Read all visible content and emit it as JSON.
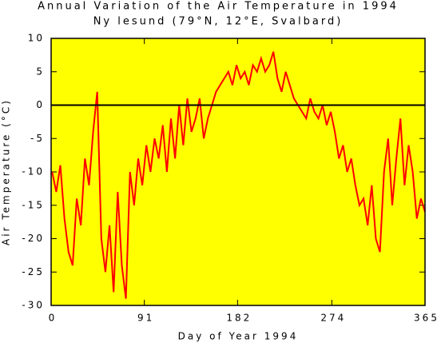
{
  "chart_data": {
    "type": "line",
    "title": "Annual Variation of the Air Temperature in 1994",
    "subtitle": "Ny lesund (79°N, 12°E, Svalbard)",
    "x_label": "Day of Year 1994",
    "y_label": "Air Temperature (°C)",
    "x": [
      1,
      5,
      9,
      13,
      17,
      21,
      25,
      29,
      33,
      37,
      41,
      45,
      49,
      53,
      57,
      61,
      65,
      69,
      73,
      77,
      81,
      85,
      89,
      93,
      97,
      101,
      105,
      109,
      113,
      117,
      121,
      125,
      129,
      133,
      137,
      141,
      145,
      149,
      153,
      157,
      161,
      165,
      169,
      173,
      177,
      181,
      185,
      189,
      193,
      197,
      201,
      205,
      209,
      213,
      217,
      221,
      225,
      229,
      233,
      237,
      241,
      245,
      249,
      253,
      257,
      261,
      265,
      269,
      273,
      277,
      281,
      285,
      289,
      293,
      297,
      301,
      305,
      309,
      313,
      317,
      321,
      325,
      329,
      333,
      337,
      341,
      345,
      349,
      353,
      357,
      361,
      365
    ],
    "series": [
      {
        "name": "Air Temperature",
        "color": "#ff0000",
        "values": [
          -10,
          -13,
          -9,
          -17,
          -22,
          -24,
          -14,
          -18,
          -8,
          -12,
          -4,
          2,
          -20,
          -25,
          -18,
          -28,
          -13,
          -24,
          -29,
          -10,
          -15,
          -8,
          -12,
          -6,
          -10,
          -5,
          -8,
          -3,
          -10,
          -2,
          -8,
          0,
          -6,
          1,
          -4,
          -2,
          1,
          -5,
          -2,
          0,
          2,
          3,
          4,
          5,
          3,
          6,
          4,
          5,
          3,
          6,
          5,
          7,
          5,
          6,
          8,
          4,
          2,
          5,
          3,
          1,
          0,
          -1,
          -2,
          1,
          -1,
          -2,
          0,
          -3,
          -1,
          -4,
          -8,
          -6,
          -10,
          -8,
          -12,
          -15,
          -14,
          -18,
          -12,
          -20,
          -22,
          -10,
          -5,
          -15,
          -8,
          -2,
          -12,
          -6,
          -10,
          -17,
          -14,
          -16
        ]
      }
    ],
    "xlim": [
      0,
      365
    ],
    "xticks": [
      0,
      91,
      182,
      274,
      365
    ],
    "ylim": [
      -30,
      10
    ],
    "yticks": [
      -30,
      -25,
      -20,
      -15,
      -10,
      -5,
      0,
      5,
      10
    ],
    "background": "#ffff00"
  }
}
